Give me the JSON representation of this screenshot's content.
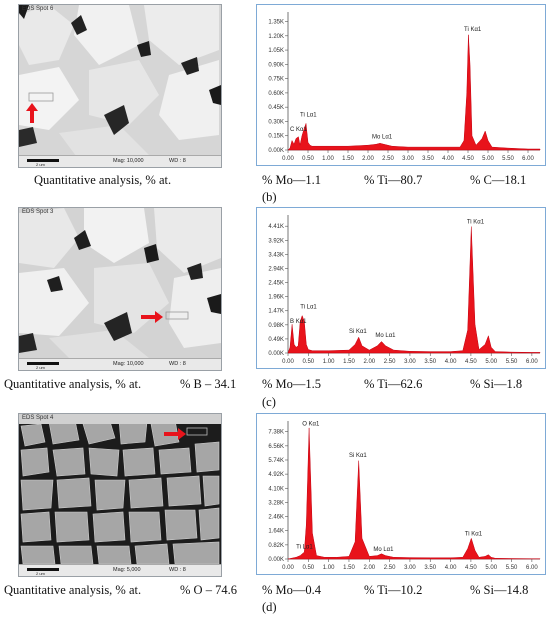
{
  "panels": [
    {
      "id": "b",
      "sem": {
        "title": "EDS Spot 6",
        "mag": "Mag: 10,000",
        "wd": "WD : 8",
        "scale": "2 um"
      },
      "caption": "Quantitative analysis, % at.",
      "left_element": "",
      "label": "(b)",
      "elements": [
        "% Mo—1.1",
        "% Ti—80.7",
        "% C—18.1"
      ],
      "chart_data": {
        "type": "area",
        "x_ticks": [
          "0.00",
          "0.50",
          "1.00",
          "1.50",
          "2.00",
          "2.50",
          "3.00",
          "3.50",
          "4.00",
          "4.50",
          "5.00",
          "5.50",
          "6.00"
        ],
        "y_ticks": [
          "0.00K",
          "0.15K",
          "0.30K",
          "0.45K",
          "0.60K",
          "0.75K",
          "0.90K",
          "1.05K",
          "1.20K",
          "1.35K"
        ],
        "xlim": [
          0,
          6.3
        ],
        "ylim": [
          0,
          1.45
        ],
        "x": [
          0,
          0.05,
          0.1,
          0.15,
          0.2,
          0.26,
          0.3,
          0.35,
          0.4,
          0.45,
          0.5,
          0.55,
          0.6,
          0.8,
          1.0,
          1.5,
          2.0,
          2.2,
          2.3,
          2.4,
          2.6,
          3.0,
          3.5,
          4.0,
          4.3,
          4.4,
          4.47,
          4.51,
          4.55,
          4.6,
          4.7,
          4.85,
          4.93,
          5.0,
          5.1,
          5.5,
          6.0,
          6.3
        ],
        "y": [
          0,
          0.02,
          0.1,
          0.06,
          0.12,
          0.14,
          0.05,
          0.15,
          0.22,
          0.28,
          0.08,
          0.05,
          0.04,
          0.04,
          0.04,
          0.04,
          0.05,
          0.06,
          0.07,
          0.06,
          0.04,
          0.03,
          0.03,
          0.03,
          0.03,
          0.1,
          0.6,
          1.21,
          0.9,
          0.15,
          0.05,
          0.12,
          0.2,
          0.1,
          0.03,
          0.02,
          0.01,
          0.01
        ],
        "annotations": [
          {
            "text": "C  Kα1",
            "x": 0.05,
            "y": 0.2
          },
          {
            "text": "Ti Lα1",
            "x": 0.3,
            "y": 0.35
          },
          {
            "text": "Mo Lα1",
            "x": 2.1,
            "y": 0.12
          },
          {
            "text": "Ti Kα1",
            "x": 4.4,
            "y": 1.25
          }
        ]
      }
    },
    {
      "id": "c",
      "sem": {
        "title": "EDS Spot 3",
        "mag": "Mag: 10,000",
        "wd": "WD : 8",
        "scale": "2 um"
      },
      "caption": "Quantitative analysis, % at.",
      "left_element": "% B – 34.1",
      "label": "(c)",
      "elements": [
        "% Mo—1.5",
        "% Ti—62.6",
        "% Si—1.8"
      ],
      "chart_data": {
        "type": "area",
        "x_ticks": [
          "0.00",
          "0.50",
          "1.00",
          "1.50",
          "2.00",
          "2.50",
          "3.00",
          "3.50",
          "4.00",
          "4.50",
          "5.00",
          "5.50",
          "6.00"
        ],
        "y_ticks": [
          "0.00K",
          "0.49K",
          "0.98K",
          "1.47K",
          "1.96K",
          "2.45K",
          "2.94K",
          "3.43K",
          "3.92K",
          "4.41K"
        ],
        "xlim": [
          0,
          6.2
        ],
        "ylim": [
          0,
          4.8
        ],
        "x": [
          0,
          0.05,
          0.1,
          0.15,
          0.2,
          0.25,
          0.3,
          0.35,
          0.4,
          0.45,
          0.5,
          0.6,
          0.8,
          1.0,
          1.5,
          1.65,
          1.74,
          1.82,
          2.0,
          2.2,
          2.3,
          2.4,
          2.6,
          3.0,
          3.5,
          4.0,
          4.3,
          4.42,
          4.51,
          4.6,
          4.7,
          4.85,
          4.93,
          5.0,
          5.1,
          5.5,
          6.0,
          6.2
        ],
        "y": [
          0,
          0.2,
          1.0,
          0.3,
          0.2,
          0.25,
          1.1,
          1.3,
          1.1,
          0.3,
          0.12,
          0.08,
          0.08,
          0.08,
          0.1,
          0.3,
          0.55,
          0.25,
          0.1,
          0.25,
          0.4,
          0.25,
          0.1,
          0.06,
          0.05,
          0.05,
          0.08,
          0.8,
          4.4,
          1.0,
          0.12,
          0.3,
          0.6,
          0.2,
          0.05,
          0.03,
          0.02,
          0.02
        ],
        "annotations": [
          {
            "text": "B  Kα1",
            "x": 0.05,
            "y": 1.05
          },
          {
            "text": "Ti Lα1",
            "x": 0.3,
            "y": 1.55
          },
          {
            "text": "Si Kα1",
            "x": 1.5,
            "y": 0.7
          },
          {
            "text": "Mo Lα1",
            "x": 2.15,
            "y": 0.55
          },
          {
            "text": "Ti Kα1",
            "x": 4.4,
            "y": 4.5
          }
        ]
      }
    },
    {
      "id": "d",
      "sem": {
        "title": "EDS Spot 4",
        "mag": "Mag: 5,000",
        "wd": "WD : 8",
        "scale": "2 um"
      },
      "caption": "Quantitative analysis, % at.",
      "left_element": "% O – 74.6",
      "label": "(d)",
      "elements": [
        "% Mo—0.4",
        "% Ti—10.2",
        "% Si—14.8"
      ],
      "chart_data": {
        "type": "area",
        "x_ticks": [
          "0.00",
          "0.50",
          "1.00",
          "1.50",
          "2.00",
          "2.50",
          "3.00",
          "3.50",
          "4.00",
          "4.50",
          "5.00",
          "5.50",
          "6.00"
        ],
        "y_ticks": [
          "0.00K",
          "0.82K",
          "1.64K",
          "2.46K",
          "3.28K",
          "4.10K",
          "4.92K",
          "5.74K",
          "6.56K",
          "7.38K"
        ],
        "xlim": [
          0,
          6.2
        ],
        "ylim": [
          0,
          8.0
        ],
        "x": [
          0,
          0.1,
          0.2,
          0.3,
          0.4,
          0.45,
          0.52,
          0.6,
          0.7,
          0.9,
          1.2,
          1.5,
          1.65,
          1.74,
          1.82,
          2.0,
          2.2,
          2.3,
          2.4,
          2.6,
          3.0,
          3.5,
          4.0,
          4.3,
          4.42,
          4.51,
          4.6,
          4.7,
          4.85,
          4.93,
          5.0,
          5.1,
          5.5,
          6.0,
          6.2
        ],
        "y": [
          0,
          0.05,
          0.1,
          0.2,
          0.4,
          2.0,
          7.6,
          1.5,
          0.2,
          0.1,
          0.1,
          0.15,
          1.0,
          5.7,
          1.2,
          0.15,
          0.2,
          0.3,
          0.2,
          0.1,
          0.08,
          0.07,
          0.07,
          0.1,
          0.6,
          1.2,
          0.5,
          0.1,
          0.15,
          0.25,
          0.1,
          0.04,
          0.03,
          0.02,
          0.02
        ],
        "annotations": [
          {
            "text": "O  Kα1",
            "x": 0.35,
            "y": 7.75
          },
          {
            "text": "Si Kα1",
            "x": 1.5,
            "y": 5.9
          },
          {
            "text": "Ti Lα1",
            "x": 0.2,
            "y": 0.6
          },
          {
            "text": "Mo Lα1",
            "x": 2.1,
            "y": 0.45
          },
          {
            "text": "Ti Kα1",
            "x": 4.35,
            "y": 1.35
          }
        ]
      }
    }
  ],
  "colors": {
    "spectrum_fill": "#e8131b",
    "spectrum_stroke": "#c40010",
    "axis": "#555555",
    "marker_arrow": "#e8131b"
  },
  "icons": {
    "marker": "red-arrow-icon"
  }
}
